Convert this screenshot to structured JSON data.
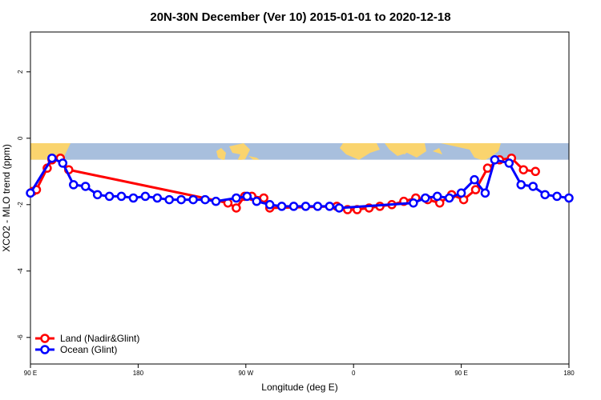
{
  "chart_data": {
    "type": "line",
    "title": "20N-30N December (Ver 10)   2015-01-01 to 2020-12-18",
    "xlabel": "Longitude (deg E)",
    "ylabel": "XCO2 - MLO trend (ppm)",
    "xlim": [
      90,
      540
    ],
    "ylim": [
      -6.8,
      3.2
    ],
    "yticks": [
      2,
      0,
      -2,
      -4,
      -6
    ],
    "xticks": [
      {
        "value": 90,
        "label": "90 E"
      },
      {
        "value": 180,
        "label": "180"
      },
      {
        "value": 270,
        "label": "90 W"
      },
      {
        "value": 360,
        "label": "0"
      },
      {
        "value": 450,
        "label": "90 E"
      },
      {
        "value": 540,
        "label": "180"
      }
    ],
    "map_band": {
      "y_top": -0.15,
      "y_bottom": -0.65,
      "ocean_color": "#a8bfdd",
      "land_color": "#fad46e"
    },
    "legend": {
      "position": "bottom-left",
      "entries": [
        "Land (Nadir&Glint)",
        "Ocean (Glint)"
      ]
    },
    "series": [
      {
        "name": "Land (Nadir&Glint)",
        "color": "#ff0000",
        "x": [
          92,
          95,
          104,
          108,
          115,
          122,
          255,
          262,
          269,
          275,
          285,
          290,
          346,
          355,
          363,
          373,
          382,
          392,
          402,
          412,
          422,
          432,
          442,
          452,
          462,
          472,
          482,
          492,
          502,
          512
        ],
        "y": [
          -1.6,
          -1.55,
          -0.9,
          -0.65,
          -0.6,
          -0.95,
          -1.95,
          -2.1,
          -1.75,
          -1.75,
          -1.8,
          -2.1,
          -2.05,
          -2.15,
          -2.15,
          -2.1,
          -2.05,
          -2.0,
          -1.9,
          -1.8,
          -1.85,
          -1.95,
          -1.7,
          -1.85,
          -1.55,
          -0.9,
          -0.65,
          -0.6,
          -0.95,
          -1.0
        ]
      },
      {
        "name": "Ocean (Glint)",
        "color": "#0000ff",
        "x": [
          90,
          108,
          117,
          126,
          136,
          146,
          156,
          166,
          176,
          186,
          196,
          206,
          216,
          226,
          236,
          245,
          262,
          271,
          279,
          290,
          300,
          310,
          320,
          330,
          340,
          348,
          410,
          420,
          430,
          440,
          450,
          461,
          470,
          478,
          490,
          500,
          510,
          520,
          530,
          540
        ],
        "y": [
          -1.65,
          -0.6,
          -0.75,
          -1.4,
          -1.45,
          -1.7,
          -1.75,
          -1.75,
          -1.8,
          -1.75,
          -1.8,
          -1.85,
          -1.85,
          -1.85,
          -1.85,
          -1.9,
          -1.8,
          -1.75,
          -1.9,
          -2.0,
          -2.05,
          -2.05,
          -2.05,
          -2.05,
          -2.05,
          -2.1,
          -1.95,
          -1.8,
          -1.75,
          -1.8,
          -1.65,
          -1.25,
          -1.65,
          -0.65,
          -0.75,
          -1.4,
          -1.45,
          -1.7,
          -1.75,
          -1.8
        ]
      }
    ]
  }
}
